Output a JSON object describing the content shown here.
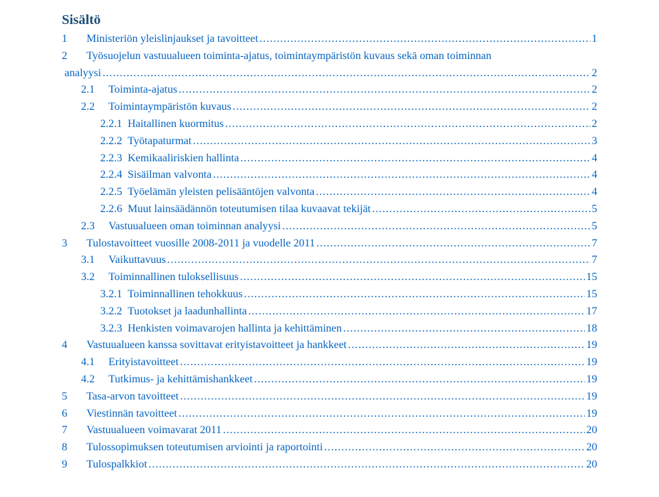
{
  "title": "Sisältö",
  "link_color": "#0563c1",
  "title_color": "#1f4e79",
  "background_color": "#ffffff",
  "font_family": "Times New Roman",
  "font_size_body": 16,
  "font_size_title": 20,
  "leader_char": ".",
  "items": [
    {
      "level": 0,
      "num": "1",
      "text": "Ministeriön yleislinjaukset ja tavoitteet",
      "page": "1"
    },
    {
      "level": 0,
      "num": "2",
      "text": "Työsuojelun vastuualueen toiminta-ajatus, toimintaympäristön kuvaus sekä oman toiminnan analyysi",
      "page": "2",
      "wrap": true
    },
    {
      "level": 1,
      "num": "2.1",
      "text": "Toiminta-ajatus",
      "page": "2"
    },
    {
      "level": 1,
      "num": "2.2",
      "text": "Toimintaympäristön kuvaus",
      "page": "2"
    },
    {
      "level": 2,
      "num": "2.2.1",
      "text": "Haitallinen kuormitus",
      "page": "2"
    },
    {
      "level": 2,
      "num": "2.2.2",
      "text": "Työtapaturmat",
      "page": "3"
    },
    {
      "level": 2,
      "num": "2.2.3",
      "text": "Kemikaaliriskien hallinta",
      "page": "4"
    },
    {
      "level": 2,
      "num": "2.2.4",
      "text": "Sisäilman valvonta",
      "page": "4"
    },
    {
      "level": 2,
      "num": "2.2.5",
      "text": "Työelämän yleisten pelisääntöjen valvonta",
      "page": "4"
    },
    {
      "level": 2,
      "num": "2.2.6",
      "text": "Muut lainsäädännön toteutumisen tilaa kuvaavat tekijät",
      "page": "5"
    },
    {
      "level": 1,
      "num": "2.3",
      "text": "Vastuualueen oman toiminnan analyysi",
      "page": "5"
    },
    {
      "level": 0,
      "num": "3",
      "text": "Tulostavoitteet vuosille 2008-2011 ja vuodelle 2011",
      "page": "7"
    },
    {
      "level": 1,
      "num": "3.1",
      "text": "Vaikuttavuus",
      "page": "7"
    },
    {
      "level": 1,
      "num": "3.2",
      "text": "Toiminnallinen tuloksellisuus",
      "page": "15"
    },
    {
      "level": 2,
      "num": "3.2.1",
      "text": "Toiminnallinen tehokkuus",
      "page": "15"
    },
    {
      "level": 2,
      "num": "3.2.2",
      "text": "Tuotokset ja laadunhallinta",
      "page": "17"
    },
    {
      "level": 2,
      "num": "3.2.3",
      "text": "Henkisten voimavarojen hallinta ja kehittäminen",
      "page": "18"
    },
    {
      "level": 0,
      "num": "4",
      "text": "Vastuualueen kanssa sovittavat erityistavoitteet ja hankkeet",
      "page": "19"
    },
    {
      "level": 1,
      "num": "4.1",
      "text": "Erityistavoitteet",
      "page": "19"
    },
    {
      "level": 1,
      "num": "4.2",
      "text": "Tutkimus- ja kehittämishankkeet",
      "page": "19"
    },
    {
      "level": 0,
      "num": "5",
      "text": "Tasa-arvon tavoitteet",
      "page": "19"
    },
    {
      "level": 0,
      "num": "6",
      "text": "Viestinnän tavoitteet",
      "page": "19"
    },
    {
      "level": 0,
      "num": "7",
      "text": "Vastuualueen voimavarat 2011",
      "page": "20"
    },
    {
      "level": 0,
      "num": "8",
      "text": "Tulossopimuksen toteutumisen arviointi ja raportointi",
      "page": "20"
    },
    {
      "level": 0,
      "num": "9",
      "text": "Tulospalkkiot",
      "page": "20"
    }
  ],
  "num_gap": {
    "0": "      ",
    "1": "    ",
    "2": " "
  }
}
